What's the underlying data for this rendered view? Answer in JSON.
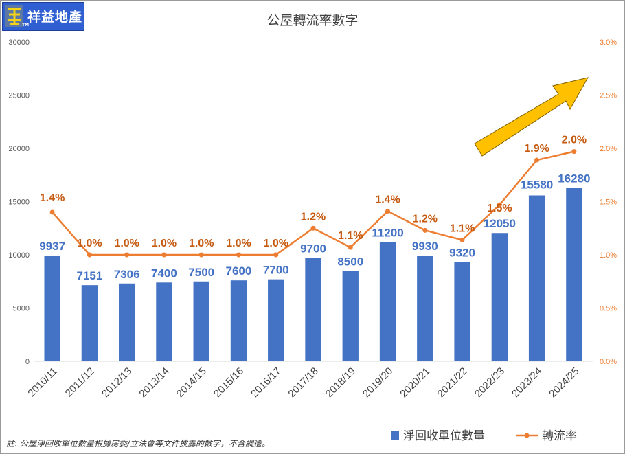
{
  "brand": {
    "name": "祥益地產",
    "tm": "TM",
    "mark": "祥益"
  },
  "footnote": "註: 公屋淨回收單位數量根據房委/立法會等文件披露的數字，不含調遷。",
  "colors": {
    "bar": "#4472c4",
    "line": "#ed7d31",
    "bar_label": "#4472c4",
    "line_label": "#c55a11",
    "arrow_fill": "#ffc000",
    "arrow_stroke": "#7f6000"
  },
  "chart_data": {
    "type": "bar",
    "title": "公屋轉流率數字",
    "categories": [
      "2010/11",
      "2011/12",
      "2012/13",
      "2013/14",
      "2014/15",
      "2015/16",
      "2016/17",
      "2017/18",
      "2018/19",
      "2019/20",
      "2020/21",
      "2021/22",
      "2022/23",
      "2023/24",
      "2024/25"
    ],
    "series": [
      {
        "name": "淨回收單位數量",
        "type": "bar",
        "axis": "left",
        "values": [
          9937,
          7151,
          7306,
          7400,
          7500,
          7600,
          7700,
          9700,
          8500,
          11200,
          9930,
          9320,
          12050,
          15580,
          16280
        ],
        "labels": [
          "9937",
          "7151",
          "7306",
          "7400",
          "7500",
          "7600",
          "7700",
          "9700",
          "8500",
          "11200",
          "9930",
          "9320",
          "12050",
          "15580",
          "16280"
        ]
      },
      {
        "name": "轉流率",
        "type": "line",
        "axis": "right",
        "values": [
          1.4,
          1.0,
          1.0,
          1.0,
          1.0,
          1.0,
          1.0,
          1.25,
          1.07,
          1.41,
          1.23,
          1.14,
          1.47,
          1.89,
          1.97
        ],
        "labels": [
          "1.4%",
          "1.0%",
          "1.0%",
          "1.0%",
          "1.0%",
          "1.0%",
          "1.0%",
          "1.2%",
          "1.1%",
          "1.4%",
          "1.2%",
          "1.1%",
          "1.5%",
          "1.9%",
          "2.0%"
        ]
      }
    ],
    "y_left": {
      "min": 0,
      "max": 30000,
      "ticks": [
        "0",
        "5000",
        "10000",
        "15000",
        "20000",
        "25000",
        "30000"
      ]
    },
    "y_right": {
      "min": 0,
      "max": 3.0,
      "ticks": [
        "0.0%",
        "0.5%",
        "1.0%",
        "1.5%",
        "2.0%",
        "2.5%",
        "3.0%"
      ]
    },
    "grid": false,
    "legend": "bottom-right"
  }
}
